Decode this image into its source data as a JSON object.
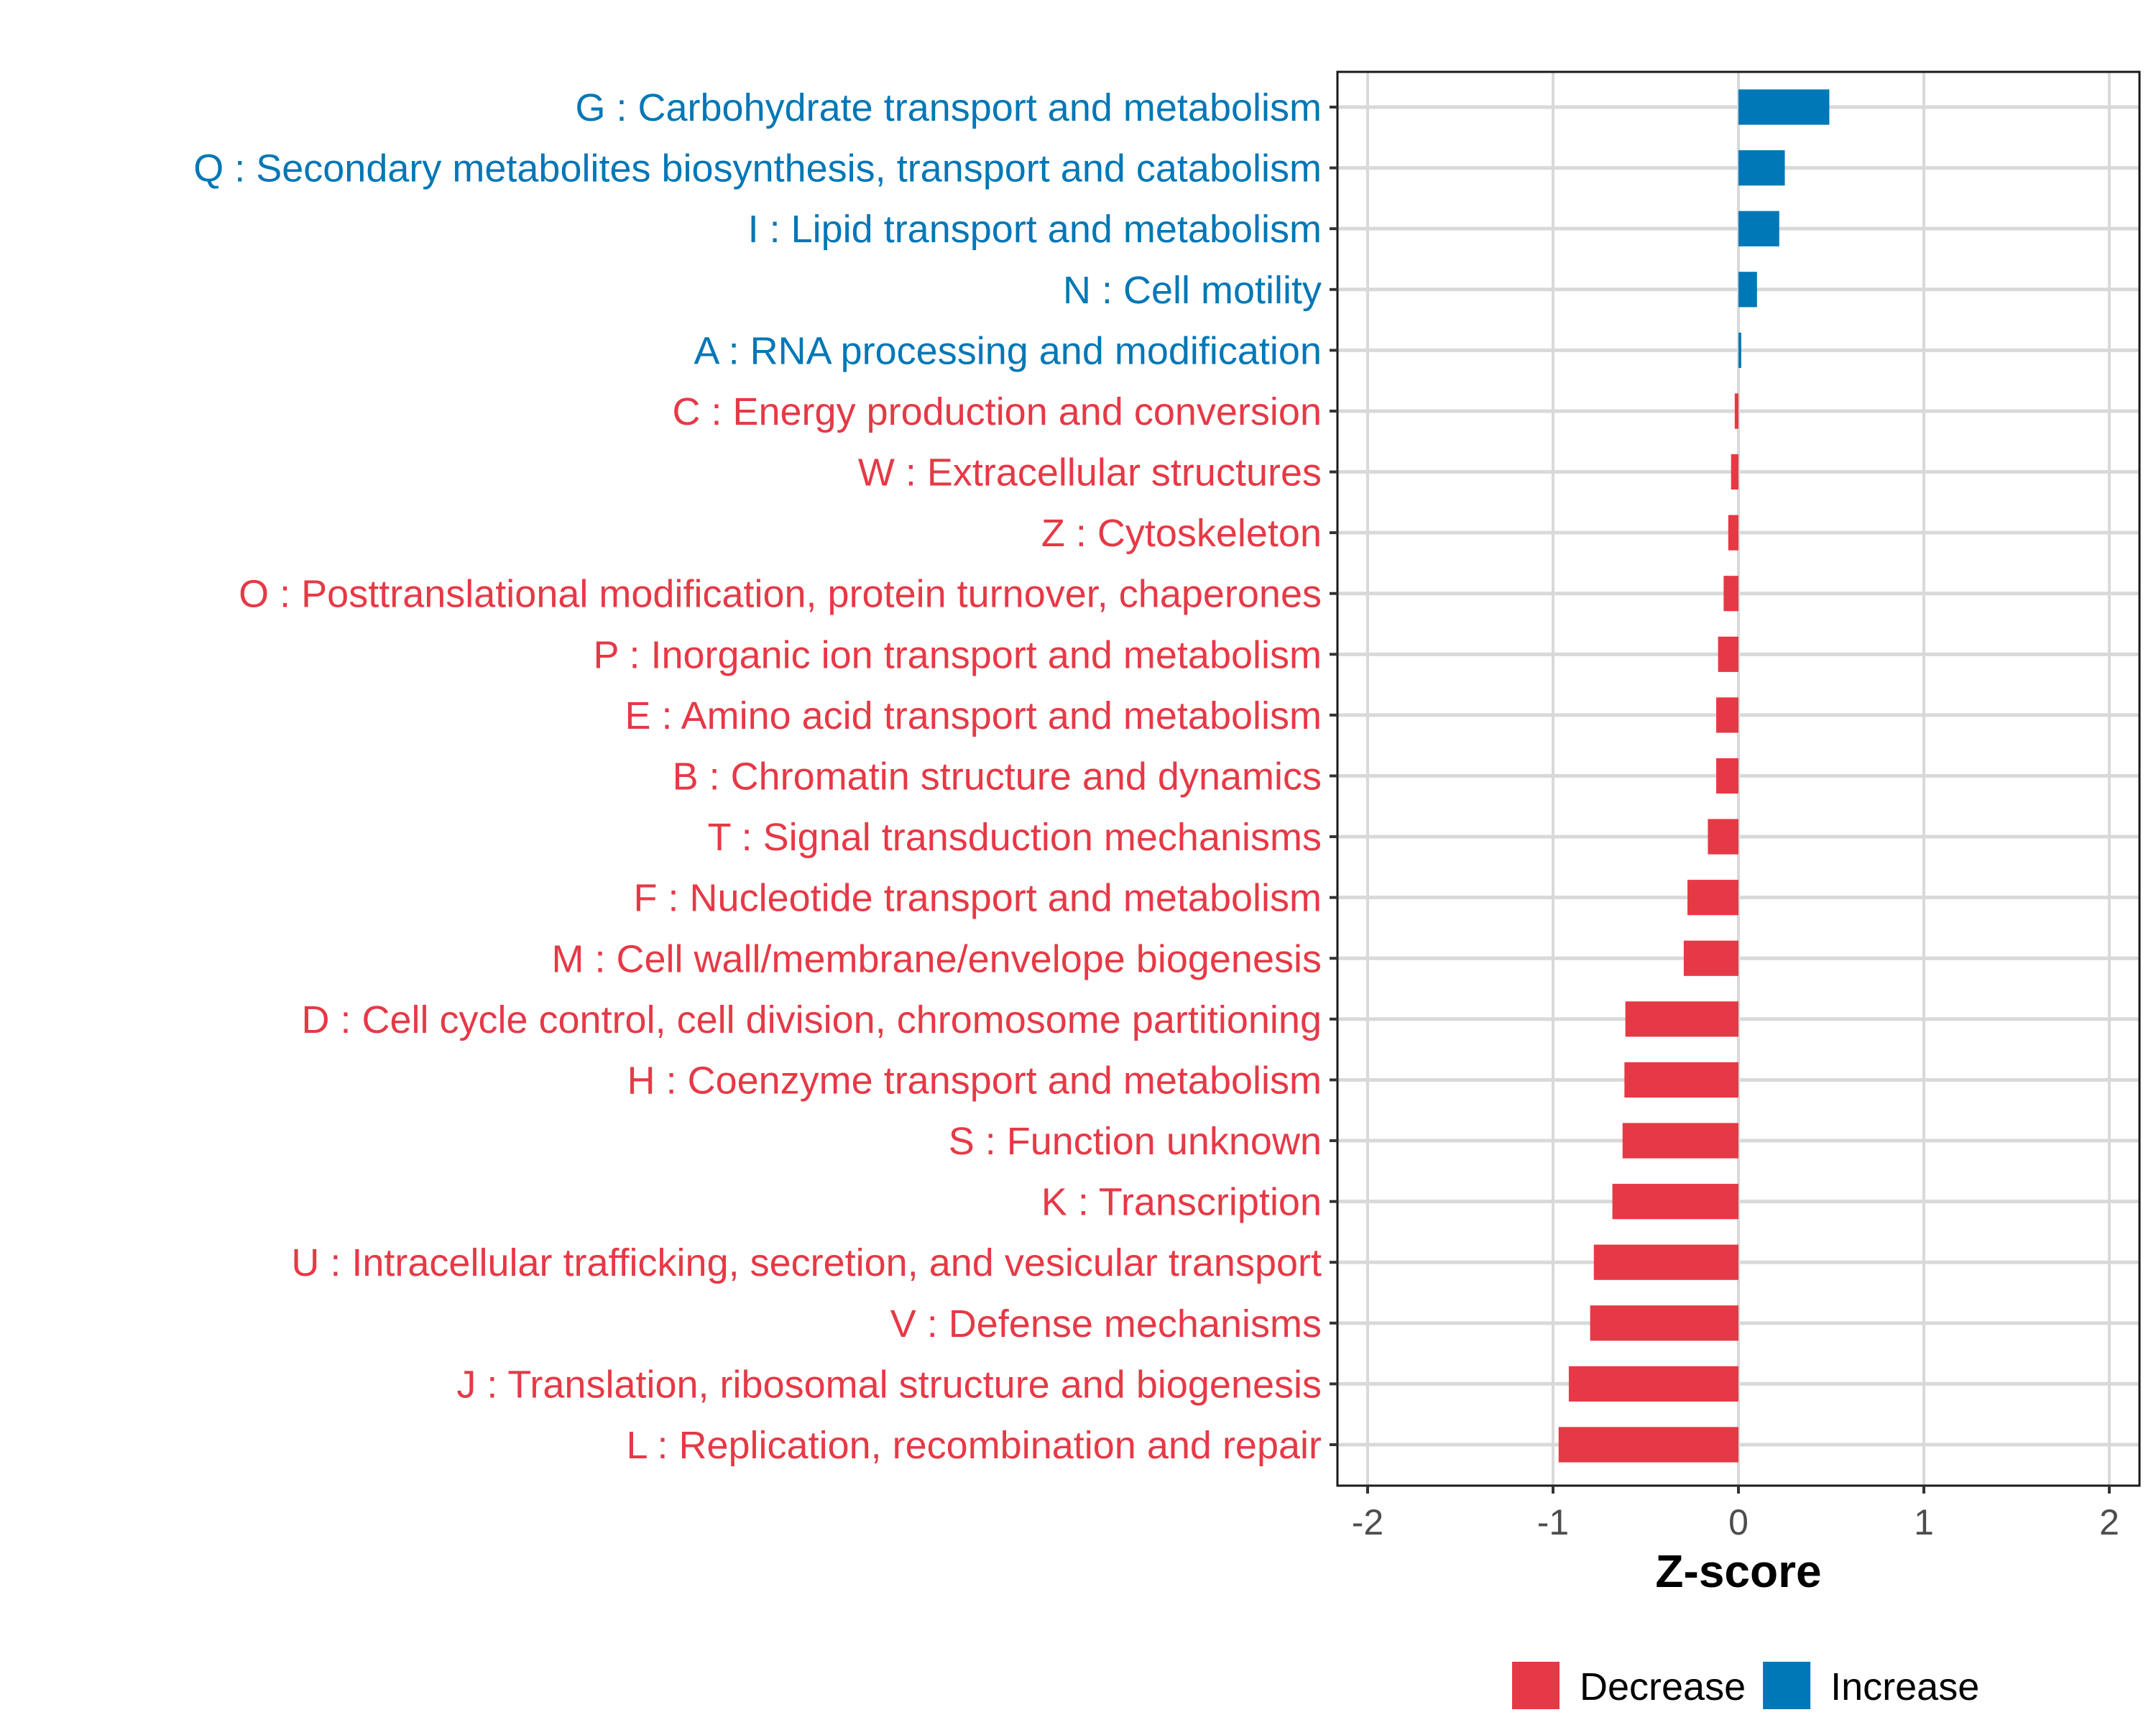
{
  "chart_data": {
    "type": "bar",
    "orientation": "horizontal",
    "title": "",
    "xlabel": "Z-score",
    "ylabel": "",
    "xlim": [
      -2.15,
      2.15
    ],
    "x_ticks": [
      -2,
      -1,
      0,
      1,
      2
    ],
    "x_tick_labels": [
      "-2",
      "-1",
      "0",
      "1",
      "2"
    ],
    "grid": true,
    "legend_position": "bottom",
    "colors": {
      "Decrease": "#E63946",
      "Increase": "#0077B6"
    },
    "legend": [
      {
        "label": "Decrease",
        "color": "#E63946"
      },
      {
        "label": "Increase",
        "color": "#0077B6"
      }
    ],
    "categories": [
      "G : Carbohydrate transport and metabolism",
      "Q : Secondary metabolites biosynthesis, transport and catabolism",
      "I : Lipid transport and metabolism",
      "N : Cell motility",
      "A : RNA processing and modification",
      "C : Energy production and conversion",
      "W : Extracellular structures",
      "Z : Cytoskeleton",
      "O : Posttranslational modification, protein turnover, chaperones",
      "P : Inorganic ion transport and metabolism",
      "E : Amino acid transport and metabolism",
      "B : Chromatin structure and dynamics",
      "T : Signal transduction mechanisms",
      "F : Nucleotide transport and metabolism",
      "M : Cell wall/membrane/envelope biogenesis",
      "D : Cell cycle control, cell division, chromosome partitioning",
      "H : Coenzyme transport and metabolism",
      "S : Function unknown",
      "K : Transcription",
      "U : Intracellular trafficking, secretion, and vesicular transport",
      "V : Defense mechanisms",
      "J : Translation, ribosomal structure and biogenesis",
      "L : Replication, recombination and repair"
    ],
    "values": [
      0.49,
      0.25,
      0.22,
      0.1,
      0.015,
      -0.02,
      -0.04,
      -0.055,
      -0.08,
      -0.11,
      -0.12,
      -0.12,
      -0.165,
      -0.275,
      -0.295,
      -0.61,
      -0.615,
      -0.625,
      -0.68,
      -0.78,
      -0.8,
      -0.915,
      -0.97
    ],
    "groups": [
      "Increase",
      "Increase",
      "Increase",
      "Increase",
      "Increase",
      "Decrease",
      "Decrease",
      "Decrease",
      "Decrease",
      "Decrease",
      "Decrease",
      "Decrease",
      "Decrease",
      "Decrease",
      "Decrease",
      "Decrease",
      "Decrease",
      "Decrease",
      "Decrease",
      "Decrease",
      "Decrease",
      "Decrease",
      "Decrease"
    ]
  }
}
